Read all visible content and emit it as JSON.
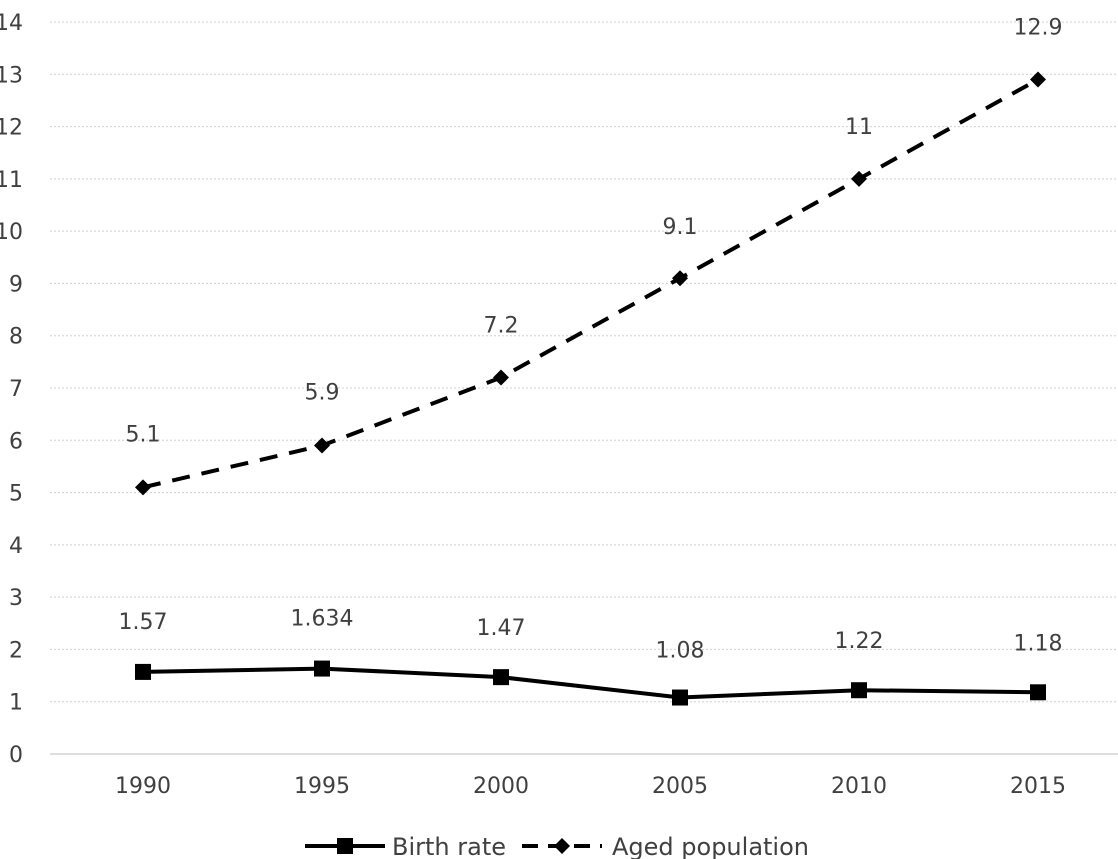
{
  "chart_data": {
    "type": "line",
    "title": "",
    "xlabel": "",
    "ylabel": "",
    "categories": [
      "1990",
      "1995",
      "2000",
      "2005",
      "2010",
      "2015"
    ],
    "ylim": [
      0,
      14
    ],
    "yticks": [
      "0",
      "1",
      "2",
      "3",
      "4",
      "5",
      "6",
      "7",
      "8",
      "9",
      "10",
      "11",
      "12",
      "13",
      "14"
    ],
    "grid": true,
    "legend_position": "bottom",
    "series": [
      {
        "name": "Birth rate",
        "values": [
          1.57,
          1.634,
          1.47,
          1.08,
          1.22,
          1.18
        ],
        "labels": [
          "1.57",
          "1.634",
          "1.47",
          "1.08",
          "1.22",
          "1.18"
        ],
        "line_style": "solid",
        "marker": "square",
        "color": "#000000"
      },
      {
        "name": "Aged population",
        "values": [
          5.1,
          5.9,
          7.2,
          9.1,
          11,
          12.9
        ],
        "labels": [
          "5.1",
          "5.9",
          "7.2",
          "9.1",
          "11",
          "12.9"
        ],
        "line_style": "dashed",
        "marker": "diamond",
        "color": "#000000"
      }
    ]
  }
}
